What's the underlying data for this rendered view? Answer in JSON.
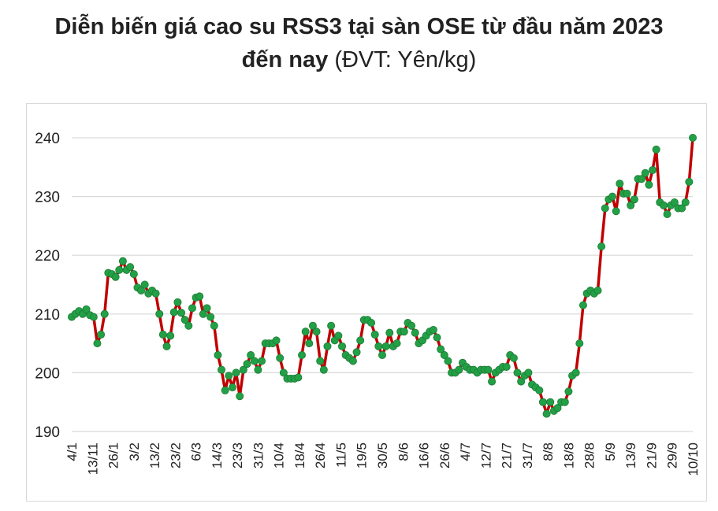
{
  "title": {
    "line1": "Diễn biến giá cao su RSS3 tại sàn OSE từ đầu năm 2023",
    "line2_bold": "đến nay",
    "line2_rest": " (ĐVT: Yên/kg)"
  },
  "colors": {
    "line": "#c00000",
    "marker_fill": "#22a046",
    "marker_stroke": "#1e7a35",
    "grid": "#d9d9d9"
  },
  "chart_data": {
    "type": "line",
    "title": "Diễn biến giá cao su RSS3 tại sàn OSE từ đầu năm 2023 đến nay",
    "unit": "Yên/kg",
    "ylim": [
      190,
      240
    ],
    "yticks": [
      190,
      200,
      210,
      220,
      230,
      240
    ],
    "grid": "horizontal",
    "xticklabels": [
      "4/1",
      "13/11",
      "26/1",
      "3/2",
      "13/2",
      "23/2",
      "6/3",
      "14/3",
      "23/3",
      "31/3",
      "10/4",
      "18/4",
      "26/4",
      "11/5",
      "19/5",
      "30/5",
      "8/6",
      "16/6",
      "26/6",
      "4/7",
      "12/7",
      "21/7",
      "31/7",
      "8/8",
      "18/8",
      "28/8",
      "5/9",
      "13/9",
      "21/9",
      "29/9",
      "10/10"
    ],
    "series": [
      {
        "values": [
          209.5,
          210,
          210.5,
          210,
          210.8,
          209.8,
          209.5,
          205,
          206.5,
          210,
          217,
          216.8,
          216.3,
          217.5,
          219,
          217.5,
          218,
          216.8,
          214.5,
          214,
          215,
          213.5,
          214,
          213.5,
          210,
          206.5,
          204.5,
          206.3,
          210.3,
          212,
          210.2,
          209,
          208,
          211,
          212.8,
          213,
          210,
          211,
          209.5,
          208,
          203,
          200.5,
          197,
          199.5,
          197.5,
          200,
          196,
          200.5,
          201.5,
          203,
          202,
          200.5,
          202,
          205,
          205,
          205,
          205.5,
          202.5,
          200,
          199,
          199,
          199,
          199.2,
          203,
          207,
          205,
          208,
          207,
          202,
          200.5,
          204.5,
          208,
          205.5,
          206.3,
          204.5,
          203,
          202.5,
          202,
          203.5,
          205.5,
          209,
          209,
          208.5,
          206.5,
          204.5,
          203,
          204.5,
          206.8,
          204.5,
          205,
          207,
          207,
          208.5,
          208,
          206.8,
          205,
          205.5,
          206.3,
          207,
          207.3,
          206,
          204,
          203,
          202,
          200,
          200,
          200.5,
          201.7,
          201,
          200.5,
          200.5,
          200,
          200.5,
          200.5,
          200.5,
          198.5,
          200,
          200.5,
          201,
          201,
          203,
          202.5,
          200,
          198.5,
          199.5,
          200,
          198,
          197.5,
          197,
          195,
          193,
          195,
          193.5,
          194,
          195,
          195,
          196.8,
          199.5,
          200,
          205,
          211.5,
          213.5,
          214,
          213.5,
          214,
          221.5,
          228,
          229.5,
          230,
          227.5,
          232.2,
          230.5,
          230.5,
          228.5,
          229.5,
          233,
          233,
          234,
          232,
          234.5,
          238,
          229,
          228.5,
          227,
          228.5,
          229,
          228,
          228,
          229,
          232.5,
          240
        ]
      }
    ]
  }
}
